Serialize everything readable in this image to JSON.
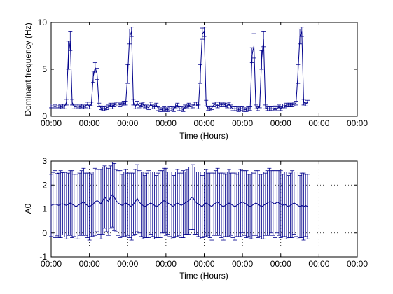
{
  "figure": {
    "background": "#ffffff",
    "line_color": "#00008b",
    "axis_color": "#000000"
  },
  "chart_data": [
    {
      "type": "line",
      "title": "",
      "xlabel": "Time (Hours)",
      "ylabel": "Dominant frequency (Hz)",
      "xticklabels": [
        "00:00",
        "00:00",
        "00:00",
        "00:00",
        "00:00",
        "00:00",
        "00:00",
        "00:00",
        "00:00"
      ],
      "yticks": [
        0,
        5,
        10
      ],
      "ylim": [
        0,
        10
      ],
      "grid": false,
      "error_bars": true,
      "series": [
        {
          "x": [
            0,
            0.05,
            0.1,
            0.15,
            0.2,
            0.25,
            0.3,
            0.35,
            0.4,
            0.45,
            0.5,
            0.55,
            0.6,
            0.65,
            0.7,
            0.75,
            0.8,
            0.85,
            0.9,
            0.95,
            1.0,
            1.05,
            1.1,
            1.15,
            1.2,
            1.25,
            1.3,
            1.35,
            1.4,
            1.45,
            1.5,
            1.55,
            1.6,
            1.65,
            1.7,
            1.75,
            1.8,
            1.85,
            1.9,
            1.95,
            2.0,
            2.05,
            2.1,
            2.15,
            2.2,
            2.25,
            2.3,
            2.35,
            2.4,
            2.45,
            2.5,
            2.55,
            2.6,
            2.65,
            2.7,
            2.75,
            2.8,
            2.85,
            2.9,
            2.95,
            3.0,
            3.05,
            3.1,
            3.15,
            3.2,
            3.25,
            3.3,
            3.35,
            3.4,
            3.45,
            3.5,
            3.55,
            3.6,
            3.65,
            3.7,
            3.75,
            3.8,
            3.85,
            3.9,
            3.95,
            4.0,
            4.05,
            4.1,
            4.15,
            4.2,
            4.25,
            4.3,
            4.35,
            4.4,
            4.45,
            4.5,
            4.55,
            4.6,
            4.65,
            4.7,
            4.75,
            4.8,
            4.85,
            4.9,
            4.95,
            5.0,
            5.05,
            5.1,
            5.15,
            5.2,
            5.25,
            5.3,
            5.35,
            5.4,
            5.45,
            5.5,
            5.55,
            5.6,
            5.65,
            5.7,
            5.75,
            5.8,
            5.85,
            5.9,
            5.95,
            6.0,
            6.05,
            6.1,
            6.15,
            6.2,
            6.25,
            6.3,
            6.35,
            6.4,
            6.45,
            6.5,
            6.55,
            6.6,
            6.65,
            6.7
          ],
          "y": [
            1.1,
            1.1,
            1.0,
            1.1,
            1.1,
            1.0,
            1.1,
            1.0,
            1.5,
            6.5,
            8.0,
            1.5,
            1.0,
            1.0,
            1.1,
            1.0,
            1.1,
            1.0,
            1.1,
            1.3,
            1.0,
            1.3,
            4.2,
            5.2,
            4.5,
            1.2,
            0.9,
            0.8,
            0.8,
            0.9,
            1.0,
            1.2,
            1.0,
            1.2,
            1.3,
            1.3,
            1.2,
            1.3,
            1.4,
            1.4,
            4.5,
            8.5,
            9.0,
            1.5,
            1.0,
            1.4,
            1.1,
            1.2,
            1.3,
            1.1,
            1.0,
            0.9,
            1.3,
            1.0,
            1.0,
            1.2,
            0.8,
            0.7,
            0.7,
            0.8,
            0.7,
            0.7,
            0.8,
            0.8,
            0.7,
            1.1,
            1.2,
            0.8,
            0.8,
            0.7,
            1.0,
            1.1,
            1.2,
            1.0,
            1.1,
            1.3,
            1.3,
            1.0,
            4.5,
            8.8,
            9.0,
            1.4,
            0.8,
            0.8,
            0.9,
            1.2,
            1.3,
            1.1,
            1.3,
            1.2,
            1.3,
            1.2,
            1.1,
            1.3,
            1.0,
            0.8,
            0.8,
            0.8,
            0.7,
            0.8,
            0.8,
            0.7,
            0.7,
            0.8,
            0.8,
            6.5,
            7.5,
            1.0,
            0.8,
            1.1,
            6.0,
            8.2,
            1.0,
            0.8,
            0.8,
            0.8,
            0.8,
            0.9,
            0.8,
            1.0,
            0.8,
            1.1,
            1.1,
            1.2,
            1.2,
            1.2,
            1.2,
            1.3,
            1.4,
            4.5,
            8.5,
            9.0,
            1.5,
            1.3,
            1.5
          ],
          "err": [
            0.2,
            0.2,
            0.2,
            0.2,
            0.2,
            0.2,
            0.2,
            0.2,
            0.3,
            1.5,
            1.0,
            0.3,
            0.2,
            0.2,
            0.2,
            0.2,
            0.2,
            0.2,
            0.2,
            0.2,
            0.2,
            0.2,
            0.6,
            0.5,
            0.6,
            0.2,
            0.2,
            0.2,
            0.2,
            0.2,
            0.2,
            0.2,
            0.2,
            0.2,
            0.2,
            0.2,
            0.2,
            0.2,
            0.2,
            0.2,
            1.0,
            0.8,
            0.5,
            0.3,
            0.2,
            0.2,
            0.2,
            0.2,
            0.2,
            0.2,
            0.2,
            0.2,
            0.2,
            0.2,
            0.2,
            0.2,
            0.2,
            0.2,
            0.2,
            0.2,
            0.2,
            0.2,
            0.2,
            0.2,
            0.2,
            0.2,
            0.2,
            0.2,
            0.2,
            0.2,
            0.2,
            0.2,
            0.2,
            0.2,
            0.2,
            0.2,
            0.2,
            0.2,
            1.0,
            0.6,
            0.5,
            0.3,
            0.2,
            0.2,
            0.2,
            0.2,
            0.2,
            0.2,
            0.2,
            0.2,
            0.2,
            0.2,
            0.2,
            0.2,
            0.2,
            0.2,
            0.2,
            0.2,
            0.2,
            0.2,
            0.2,
            0.2,
            0.2,
            0.2,
            0.2,
            0.8,
            1.3,
            0.2,
            0.2,
            0.2,
            1.0,
            0.8,
            0.2,
            0.2,
            0.2,
            0.2,
            0.2,
            0.2,
            0.2,
            0.2,
            0.2,
            0.2,
            0.2,
            0.2,
            0.2,
            0.2,
            0.2,
            0.2,
            0.2,
            1.0,
            0.8,
            0.5,
            0.3,
            0.2,
            0.2
          ]
        }
      ]
    },
    {
      "type": "line",
      "title": "",
      "xlabel": "Time (Hours)",
      "ylabel": "A0",
      "xticklabels": [
        "00:00",
        "00:00",
        "00:00",
        "00:00",
        "00:00",
        "00:00",
        "00:00",
        "00:00",
        "00:00"
      ],
      "yticks": [
        -1,
        0,
        1,
        2,
        3
      ],
      "ylim": [
        -1,
        3
      ],
      "grid": true,
      "error_bars": true,
      "series": [
        {
          "x": [
            0,
            0.05,
            0.1,
            0.15,
            0.2,
            0.25,
            0.3,
            0.35,
            0.4,
            0.45,
            0.5,
            0.55,
            0.6,
            0.65,
            0.7,
            0.75,
            0.8,
            0.85,
            0.9,
            0.95,
            1.0,
            1.05,
            1.1,
            1.15,
            1.2,
            1.25,
            1.3,
            1.35,
            1.4,
            1.45,
            1.5,
            1.55,
            1.6,
            1.65,
            1.7,
            1.75,
            1.8,
            1.85,
            1.9,
            1.95,
            2.0,
            2.05,
            2.1,
            2.15,
            2.2,
            2.25,
            2.3,
            2.35,
            2.4,
            2.45,
            2.5,
            2.55,
            2.6,
            2.65,
            2.7,
            2.75,
            2.8,
            2.85,
            2.9,
            2.95,
            3.0,
            3.05,
            3.1,
            3.15,
            3.2,
            3.25,
            3.3,
            3.35,
            3.4,
            3.45,
            3.5,
            3.55,
            3.6,
            3.65,
            3.7,
            3.75,
            3.8,
            3.85,
            3.9,
            3.95,
            4.0,
            4.05,
            4.1,
            4.15,
            4.2,
            4.25,
            4.3,
            4.35,
            4.4,
            4.45,
            4.5,
            4.55,
            4.6,
            4.65,
            4.7,
            4.75,
            4.8,
            4.85,
            4.9,
            4.95,
            5.0,
            5.05,
            5.1,
            5.15,
            5.2,
            5.25,
            5.3,
            5.35,
            5.4,
            5.45,
            5.5,
            5.55,
            5.6,
            5.65,
            5.7,
            5.75,
            5.8,
            5.85,
            5.9,
            5.95,
            6.0,
            6.05,
            6.1,
            6.15,
            6.2,
            6.25,
            6.3,
            6.35,
            6.4,
            6.45,
            6.5,
            6.55,
            6.6,
            6.65,
            6.7
          ],
          "y": [
            1.15,
            1.18,
            1.2,
            1.18,
            1.15,
            1.2,
            1.22,
            1.18,
            1.15,
            1.2,
            1.25,
            1.2,
            1.15,
            1.1,
            1.15,
            1.2,
            1.25,
            1.3,
            1.2,
            1.15,
            1.1,
            1.15,
            1.2,
            1.3,
            1.35,
            1.3,
            1.2,
            1.35,
            1.5,
            1.4,
            1.3,
            1.5,
            1.6,
            1.5,
            1.35,
            1.25,
            1.2,
            1.15,
            1.2,
            1.25,
            1.2,
            1.15,
            1.1,
            1.2,
            1.3,
            1.45,
            1.3,
            1.2,
            1.15,
            1.1,
            1.15,
            1.2,
            1.25,
            1.2,
            1.15,
            1.1,
            1.15,
            1.2,
            1.3,
            1.35,
            1.3,
            1.25,
            1.2,
            1.15,
            1.1,
            1.2,
            1.25,
            1.2,
            1.15,
            1.2,
            1.25,
            1.3,
            1.35,
            1.45,
            1.5,
            1.35,
            1.25,
            1.2,
            1.15,
            1.1,
            1.2,
            1.25,
            1.2,
            1.15,
            1.1,
            1.2,
            1.25,
            1.3,
            1.2,
            1.15,
            1.1,
            1.15,
            1.2,
            1.25,
            1.2,
            1.15,
            1.1,
            1.15,
            1.2,
            1.25,
            1.3,
            1.25,
            1.2,
            1.15,
            1.1,
            1.15,
            1.2,
            1.25,
            1.2,
            1.15,
            1.1,
            1.15,
            1.2,
            1.25,
            1.3,
            1.3,
            1.25,
            1.2,
            1.3,
            1.25,
            1.2,
            1.15,
            1.2,
            1.15,
            1.1,
            1.15,
            1.2,
            1.25,
            1.2,
            1.15,
            1.1,
            1.15,
            1.1,
            1.15,
            1.1
          ],
          "err": [
            1.3,
            1.35,
            1.4,
            1.3,
            1.35,
            1.4,
            1.3,
            1.35,
            1.4,
            1.3,
            1.35,
            1.4,
            1.3,
            1.35,
            1.4,
            1.3,
            1.35,
            1.4,
            1.3,
            1.35,
            1.4,
            1.3,
            1.35,
            1.4,
            1.3,
            1.35,
            1.45,
            1.4,
            1.3,
            1.35,
            1.4,
            1.3,
            1.35,
            1.4,
            1.3,
            1.35,
            1.4,
            1.3,
            1.35,
            1.4,
            1.3,
            1.35,
            1.4,
            1.3,
            1.35,
            1.4,
            1.3,
            1.35,
            1.4,
            1.3,
            1.35,
            1.4,
            1.3,
            1.35,
            1.4,
            1.3,
            1.35,
            1.4,
            1.3,
            1.35,
            1.4,
            1.3,
            1.35,
            1.4,
            1.3,
            1.35,
            1.4,
            1.3,
            1.35,
            1.4,
            1.3,
            1.35,
            1.4,
            1.3,
            1.35,
            1.4,
            1.3,
            1.35,
            1.4,
            1.3,
            1.35,
            1.4,
            1.3,
            1.35,
            1.4,
            1.3,
            1.35,
            1.4,
            1.3,
            1.35,
            1.4,
            1.3,
            1.35,
            1.4,
            1.3,
            1.35,
            1.4,
            1.3,
            1.35,
            1.4,
            1.3,
            1.35,
            1.4,
            1.3,
            1.35,
            1.4,
            1.3,
            1.35,
            1.4,
            1.3,
            1.35,
            1.4,
            1.3,
            1.35,
            1.4,
            1.3,
            1.35,
            1.4,
            1.3,
            1.35,
            1.4,
            1.3,
            1.35,
            1.4,
            1.3,
            1.35,
            1.4,
            1.3,
            1.35,
            1.4,
            1.3,
            1.35,
            1.4,
            1.3,
            1.35
          ]
        }
      ]
    }
  ]
}
